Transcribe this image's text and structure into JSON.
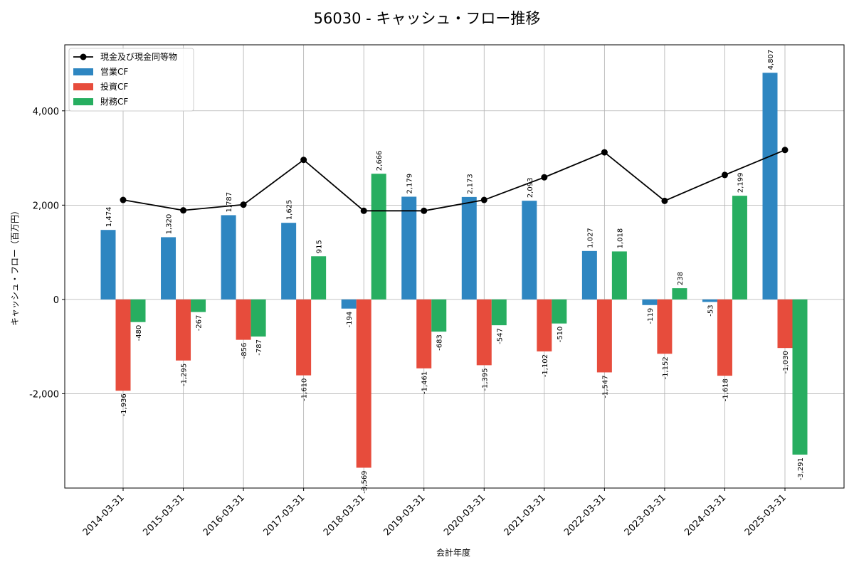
{
  "chart_data": {
    "type": "bar",
    "title": "56030 - キャッシュ・フロー推移",
    "xlabel": "会計年度",
    "ylabel": "キャッシュ・フロー（百万円）",
    "categories": [
      "2014-03-31",
      "2015-03-31",
      "2016-03-31",
      "2017-03-31",
      "2018-03-31",
      "2019-03-31",
      "2020-03-31",
      "2021-03-31",
      "2022-03-31",
      "2023-03-31",
      "2024-03-31",
      "2025-03-31"
    ],
    "ylim": [
      -4000,
      5400
    ],
    "yticks": [
      -2000,
      0,
      2000,
      4000
    ],
    "ytick_labels": [
      "-2,000",
      "0",
      "2,000",
      "4,000"
    ],
    "grid": true,
    "legend_position": "top-left",
    "series": [
      {
        "name": "営業CF",
        "kind": "bar",
        "color": "#2e86c1",
        "values": [
          1474,
          1320,
          1787,
          1625,
          -194,
          2179,
          2173,
          2093,
          1027,
          -119,
          -53,
          4807
        ],
        "labels": [
          "1,474",
          "1,320",
          "1,787",
          "1,625",
          "-194",
          "2,179",
          "2,173",
          "2,093",
          "1,027",
          "-119",
          "-53",
          "4,807"
        ]
      },
      {
        "name": "投資CF",
        "kind": "bar",
        "color": "#e74c3c",
        "values": [
          -1936,
          -1295,
          -856,
          -1610,
          -3569,
          -1461,
          -1395,
          -1102,
          -1547,
          -1152,
          -1618,
          -1030
        ],
        "labels": [
          "-1,936",
          "-1,295",
          "-856",
          "-1,610",
          "-3,569",
          "-1,461",
          "-1,395",
          "-1,102",
          "-1,547",
          "-1,152",
          "-1,618",
          "-1,030"
        ]
      },
      {
        "name": "財務CF",
        "kind": "bar",
        "color": "#27ae60",
        "values": [
          -480,
          -267,
          -787,
          915,
          2666,
          -683,
          -547,
          -510,
          1018,
          238,
          2199,
          -3291
        ],
        "labels": [
          "-480",
          "-267",
          "-787",
          "915",
          "2,666",
          "-683",
          "-547",
          "-510",
          "1,018",
          "238",
          "2,199",
          "-3,291"
        ]
      },
      {
        "name": "現金及び現金同等物",
        "kind": "line",
        "color": "#000000",
        "values": [
          2110,
          1890,
          2010,
          2960,
          1880,
          1880,
          2110,
          2590,
          3120,
          2090,
          2640,
          3170
        ]
      }
    ]
  }
}
